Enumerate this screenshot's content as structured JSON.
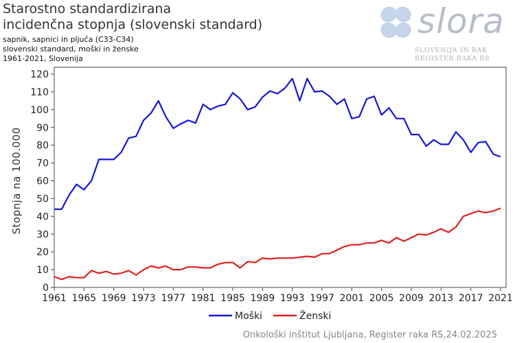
{
  "title_line1": "Starostno standardizirana",
  "title_line2": "incidenčna stopnja (slovenski standard)",
  "subtitle_line1": "sapnik, sapnici in pljuča (C33-C34)",
  "subtitle_line2": "slovenski standard, moški in ženske",
  "subtitle_line3": "1961-2021, Slovenija",
  "logo": {
    "name": "slora",
    "sub1": "SLOVENIJA IN RAK",
    "sub2": "REGISTER RAKA RS"
  },
  "credit": "Onkološki inštitut Ljubljana, Register raka RS,24.02.2025",
  "colors": {
    "male": "#1515d8",
    "female": "#e01f1f"
  },
  "chart_data": {
    "type": "line",
    "ylabel": "Stopnja na 100.000",
    "ylim": [
      0,
      120
    ],
    "yticks": [
      0,
      10,
      20,
      30,
      40,
      50,
      60,
      70,
      80,
      90,
      100,
      110,
      120
    ],
    "xlim": [
      1961,
      2021
    ],
    "xticks": [
      1961,
      1965,
      1969,
      1973,
      1977,
      1981,
      1985,
      1989,
      1993,
      1997,
      2001,
      2005,
      2009,
      2013,
      2017,
      2021
    ],
    "grid": false,
    "legend": "bottom",
    "x": [
      1961,
      1962,
      1963,
      1964,
      1965,
      1966,
      1967,
      1968,
      1969,
      1970,
      1971,
      1972,
      1973,
      1974,
      1975,
      1976,
      1977,
      1978,
      1979,
      1980,
      1981,
      1982,
      1983,
      1984,
      1985,
      1986,
      1987,
      1988,
      1989,
      1990,
      1991,
      1992,
      1993,
      1994,
      1995,
      1996,
      1997,
      1998,
      1999,
      2000,
      2001,
      2002,
      2003,
      2004,
      2005,
      2006,
      2007,
      2008,
      2009,
      2010,
      2011,
      2012,
      2013,
      2014,
      2015,
      2016,
      2017,
      2018,
      2019,
      2020,
      2021
    ],
    "series": [
      {
        "name": "Moški",
        "values": [
          44,
          44,
          52,
          58,
          55,
          60,
          72,
          72,
          72,
          76,
          84,
          85,
          94,
          98,
          105,
          96,
          89.5,
          92,
          94,
          92.5,
          103,
          100,
          102,
          103,
          109.5,
          106,
          100,
          101.5,
          107,
          110.5,
          109,
          112,
          117.5,
          105,
          117.5,
          110,
          110.5,
          107.5,
          103,
          106,
          95,
          96,
          106,
          107.5,
          97,
          101,
          95,
          95,
          86,
          86,
          79.5,
          83,
          80.5,
          80.5,
          87.5,
          83,
          76,
          81.5,
          82,
          75,
          73.5
        ]
      },
      {
        "name": "Ženski",
        "values": [
          6,
          4.5,
          6,
          5.5,
          5.5,
          9.5,
          8,
          9,
          7.5,
          8,
          9.5,
          7,
          10,
          12,
          11,
          12,
          10,
          10,
          11.5,
          11.5,
          11,
          11,
          13,
          14,
          14,
          11,
          14.5,
          14,
          16.5,
          16,
          16.5,
          16.5,
          16.5,
          17,
          17.5,
          17,
          19,
          19,
          21,
          23,
          24,
          24,
          25,
          25,
          26.5,
          25,
          28,
          26,
          28,
          30,
          29.5,
          31,
          33,
          31,
          34,
          40,
          41.5,
          43,
          42,
          43,
          44.5
        ]
      }
    ]
  }
}
